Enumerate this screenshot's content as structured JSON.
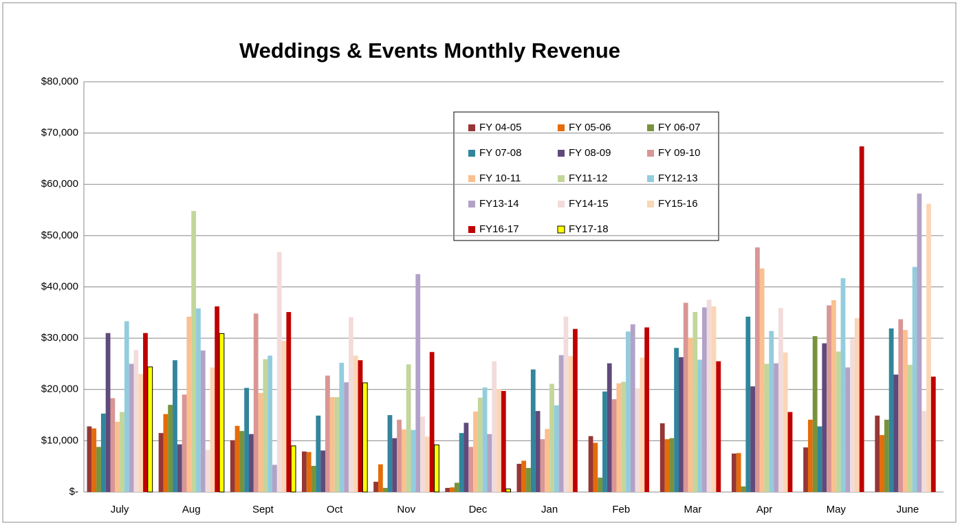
{
  "chart_data": {
    "type": "bar",
    "title": "Weddings & Events Monthly Revenue",
    "categories": [
      "July",
      "Aug",
      "Sept",
      "Oct",
      "Nov",
      "Dec",
      "Jan",
      "Feb",
      "Mar",
      "Apr",
      "May",
      "June"
    ],
    "ylim": [
      0,
      80000
    ],
    "yticks": [
      {
        "value": 0,
        "label": "$-"
      },
      {
        "value": 10000,
        "label": "$10,000"
      },
      {
        "value": 20000,
        "label": "$20,000"
      },
      {
        "value": 30000,
        "label": "$30,000"
      },
      {
        "value": 40000,
        "label": "$40,000"
      },
      {
        "value": 50000,
        "label": "$50,000"
      },
      {
        "value": 60000,
        "label": "$60,000"
      },
      {
        "value": 70000,
        "label": "$70,000"
      },
      {
        "value": 80000,
        "label": "$80,000"
      }
    ],
    "grid": true,
    "series": [
      {
        "name": "FY 04-05",
        "color": "#953735",
        "values": [
          12800,
          11500,
          10100,
          7900,
          2000,
          800,
          5500,
          10900,
          13400,
          7500,
          8700,
          14900
        ]
      },
      {
        "name": "FY 05-06",
        "color": "#e46c0a",
        "values": [
          12400,
          15200,
          12900,
          7800,
          5400,
          900,
          6100,
          9600,
          10300,
          7600,
          14100,
          11100
        ]
      },
      {
        "name": "FY 06-07",
        "color": "#77933c",
        "values": [
          8800,
          17000,
          11900,
          5100,
          800,
          1800,
          4700,
          2800,
          10500,
          1100,
          30400,
          14100
        ]
      },
      {
        "name": "FY 07-08",
        "color": "#31859c",
        "values": [
          15300,
          25700,
          20300,
          14900,
          15000,
          11500,
          23900,
          19600,
          28100,
          34200,
          12800,
          31900
        ]
      },
      {
        "name": "FY 08-09",
        "color": "#604a7b",
        "values": [
          31000,
          9300,
          11300,
          8100,
          10500,
          13500,
          15800,
          25100,
          26300,
          20600,
          29000,
          22900
        ]
      },
      {
        "name": "FY 09-10",
        "color": "#d99694",
        "values": [
          18300,
          19000,
          34800,
          22700,
          14100,
          8800,
          10300,
          18100,
          36900,
          47700,
          36400,
          33700
        ]
      },
      {
        "name": "FY 10-11",
        "color": "#fac090",
        "values": [
          13700,
          34200,
          19300,
          18500,
          12200,
          15700,
          12300,
          21200,
          30100,
          43600,
          37400,
          31600
        ]
      },
      {
        "name": "FY11-12",
        "color": "#c3d69b",
        "values": [
          15600,
          54800,
          25900,
          18500,
          24900,
          18400,
          21100,
          21500,
          35100,
          25000,
          27400,
          24800
        ]
      },
      {
        "name": "FY12-13",
        "color": "#93cddd",
        "values": [
          33300,
          35800,
          26600,
          25200,
          12100,
          20400,
          16900,
          31300,
          25800,
          31400,
          41700,
          43900
        ]
      },
      {
        "name": "FY13-14",
        "color": "#b3a2c7",
        "values": [
          25000,
          27600,
          5300,
          21400,
          42500,
          11300,
          26700,
          32700,
          36000,
          25100,
          24300,
          58200
        ]
      },
      {
        "name": "FY14-15",
        "color": "#f2dcdb",
        "values": [
          27700,
          8200,
          46800,
          34100,
          14700,
          25500,
          34200,
          20200,
          37500,
          35900,
          29800,
          15800
        ]
      },
      {
        "name": "FY15-16",
        "color": "#fcd5b5",
        "values": [
          23000,
          24300,
          29500,
          26600,
          10800,
          20100,
          26500,
          26200,
          36200,
          27200,
          33900,
          56200
        ]
      },
      {
        "name": "FY16-17",
        "color": "#c00000",
        "values": [
          31000,
          36200,
          35100,
          25700,
          27300,
          19700,
          31800,
          32100,
          25500,
          15600,
          67400,
          22500
        ]
      },
      {
        "name": "FY17-18",
        "color": "#ffff00",
        "outline": "#000000",
        "values": [
          24400,
          30900,
          9000,
          21300,
          9200,
          600,
          null,
          null,
          null,
          null,
          null,
          null
        ]
      }
    ]
  }
}
